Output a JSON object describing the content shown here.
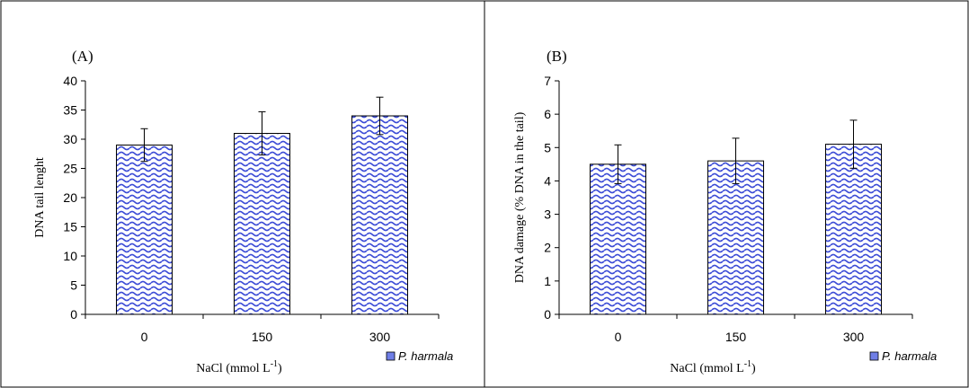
{
  "chart_data": [
    {
      "type": "bar",
      "panel_label": "(A)",
      "categories": [
        "0",
        "150",
        "300"
      ],
      "series": [
        {
          "name": "P. harmala",
          "values": [
            29,
            31,
            34
          ],
          "error": [
            2.8,
            3.7,
            3.2
          ]
        }
      ],
      "xlabel": "NaCl (mmol L",
      "xlabel_sup": "-1",
      "xlabel_end": ")",
      "ylabel": "DNA tail lenght",
      "ylim": [
        0,
        40
      ],
      "yticks": [
        "0",
        "5",
        "10",
        "15",
        "20",
        "25",
        "30",
        "35",
        "40"
      ],
      "legend": "P. harmala",
      "legend_position": "bottom-right",
      "grid": false,
      "fill": "#3b4bd6"
    },
    {
      "type": "bar",
      "panel_label": "(B)",
      "categories": [
        "0",
        "150",
        "300"
      ],
      "series": [
        {
          "name": "P. harmala",
          "values": [
            4.5,
            4.6,
            5.1
          ],
          "error": [
            0.58,
            0.68,
            0.72
          ]
        }
      ],
      "xlabel": "NaCl (mmol L",
      "xlabel_sup": "-1",
      "xlabel_end": ")",
      "ylabel": "DNA damage (% DNA in the tail)",
      "ylim": [
        0,
        7
      ],
      "yticks": [
        "0",
        "1",
        "2",
        "3",
        "4",
        "5",
        "6",
        "7"
      ],
      "legend": "P. harmala",
      "legend_position": "bottom-right",
      "grid": false,
      "fill": "#3b4bd6"
    }
  ]
}
